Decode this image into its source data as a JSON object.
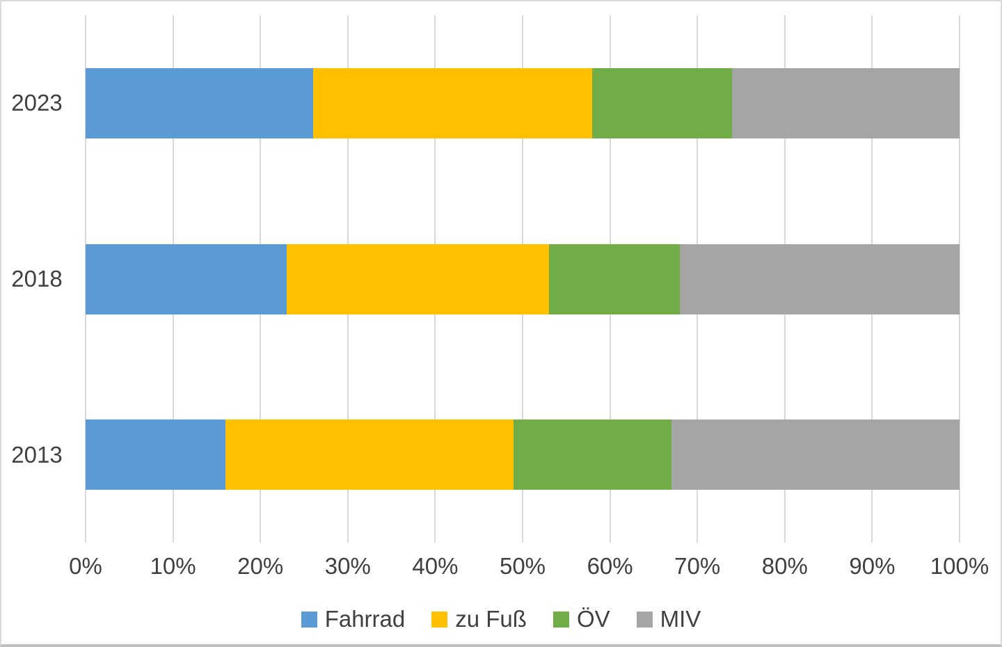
{
  "chart_data": {
    "type": "bar",
    "orientation": "horizontal-stacked",
    "title": "",
    "xlabel": "",
    "ylabel": "",
    "categories": [
      "2023",
      "2018",
      "2013"
    ],
    "series": [
      {
        "name": "Fahrrad",
        "color": "#5B9BD5",
        "values": [
          26,
          23,
          16
        ]
      },
      {
        "name": "zu Fuß",
        "color": "#FFC000",
        "values": [
          32,
          30,
          33
        ]
      },
      {
        "name": "ÖV",
        "color": "#70AD47",
        "values": [
          16,
          15,
          18
        ]
      },
      {
        "name": "MIV",
        "color": "#A5A5A5",
        "values": [
          26,
          32,
          33
        ]
      }
    ],
    "x_axis": {
      "min": 0,
      "max": 100,
      "tick_step": 10,
      "tick_labels": [
        "0%",
        "10%",
        "20%",
        "30%",
        "40%",
        "50%",
        "60%",
        "70%",
        "80%",
        "90%",
        "100%"
      ]
    },
    "legend": {
      "position": "bottom",
      "entries": [
        "Fahrrad",
        "zu Fuß",
        "ÖV",
        "MIV"
      ]
    },
    "grid": true,
    "gridline_color": "#D9D9D9",
    "text_color": "#404040",
    "background_color": "#FFFFFF",
    "border_color": "#D9D9D9"
  }
}
